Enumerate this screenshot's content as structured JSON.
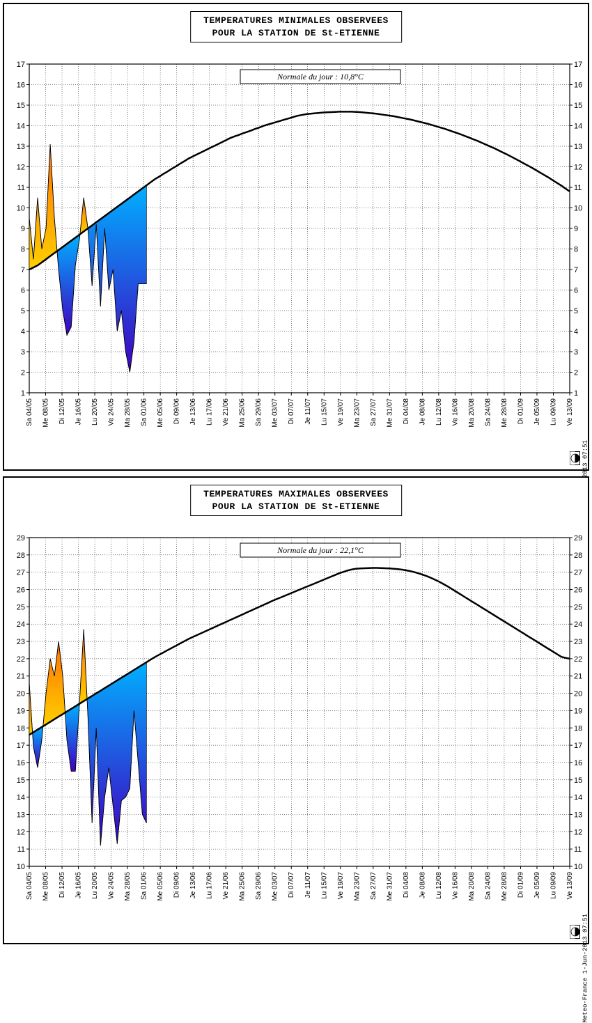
{
  "credit_text": "Meteo-France  1-Jun-2013 07:51",
  "x_labels": [
    "Sa 04/05",
    "Me 08/05",
    "Di 12/05",
    "Je 16/05",
    "Lu 20/05",
    "Ve 24/05",
    "Ma 28/05",
    "Sa 01/06",
    "Me 05/06",
    "Di 09/06",
    "Je 13/06",
    "Lu 17/06",
    "Ve 21/06",
    "Ma 25/06",
    "Sa 29/06",
    "Me 03/07",
    "Di 07/07",
    "Je 11/07",
    "Lu 15/07",
    "Ve 19/07",
    "Ma 23/07",
    "Sa 27/07",
    "Me 31/07",
    "Di 04/08",
    "Je 08/08",
    "Lu 12/08",
    "Ve 16/08",
    "Ma 20/08",
    "Sa 24/08",
    "Me 28/08",
    "Di 01/09",
    "Je 05/09",
    "Lu 09/09",
    "Ve 13/09"
  ],
  "label_fontsize": 10,
  "tick_fontsize": 11,
  "grid_color": "#000000",
  "grid_dash": "1,2",
  "normale_curve_color": "#000000",
  "normale_curve_width": 2.5,
  "warm_gradient": {
    "top": "#ff7000",
    "bottom": "#ffd000"
  },
  "cold_gradient": {
    "top": "#00b0ff",
    "bottom": "#4000c0"
  },
  "chart1": {
    "type": "area-deviation",
    "title_line1": "TEMPERATURES MINIMALES OBSERVEES",
    "title_line2": "POUR LA STATION DE St-ETIENNE",
    "normal_label": "Normale du jour : 10,8°C",
    "ylim": [
      1,
      17
    ],
    "ytick_step": 1,
    "normale_series": [
      7.0,
      7.1,
      7.2,
      7.35,
      7.5,
      7.65,
      7.8,
      7.95,
      8.1,
      8.25,
      8.4,
      8.55,
      8.7,
      8.85,
      9.0,
      9.15,
      9.3,
      9.45,
      9.6,
      9.75,
      9.9,
      10.05,
      10.2,
      10.35,
      10.5,
      10.65,
      10.8,
      10.95,
      11.1,
      11.25,
      11.4,
      11.52,
      11.65,
      11.77,
      11.9,
      12.02,
      12.15,
      12.27,
      12.4,
      12.5,
      12.6,
      12.7,
      12.8,
      12.9,
      13.0,
      13.1,
      13.2,
      13.3,
      13.4,
      13.48,
      13.55,
      13.63,
      13.7,
      13.77,
      13.85,
      13.92,
      14.0,
      14.06,
      14.12,
      14.18,
      14.24,
      14.3,
      14.36,
      14.42,
      14.48,
      14.52,
      14.56,
      14.58,
      14.6,
      14.62,
      14.64,
      14.65,
      14.66,
      14.67,
      14.68,
      14.68,
      14.68,
      14.68,
      14.67,
      14.66,
      14.64,
      14.62,
      14.6,
      14.58,
      14.55,
      14.52,
      14.49,
      14.46,
      14.42,
      14.38,
      14.34,
      14.3,
      14.25,
      14.2,
      14.15,
      14.1,
      14.04,
      13.98,
      13.92,
      13.86,
      13.79,
      13.72,
      13.65,
      13.58,
      13.5,
      13.42,
      13.34,
      13.26,
      13.17,
      13.08,
      12.99,
      12.9,
      12.8,
      12.7,
      12.6,
      12.5,
      12.39,
      12.28,
      12.17,
      12.06,
      11.95,
      11.83,
      11.71,
      11.59,
      11.47,
      11.34,
      11.21,
      11.08,
      10.94,
      10.8
    ],
    "observed_series": [
      9.5,
      7.5,
      10.5,
      8.0,
      9.0,
      13.1,
      9.5,
      7.0,
      5.0,
      3.8,
      4.2,
      7.2,
      8.5,
      10.5,
      9.0,
      6.2,
      9.2,
      5.2,
      9.0,
      6.0,
      7.0,
      4.0,
      5.0,
      3.0,
      2.0,
      3.5,
      6.3,
      6.3,
      6.3
    ]
  },
  "chart2": {
    "type": "area-deviation",
    "title_line1": "TEMPERATURES MAXIMALES OBSERVEES",
    "title_line2": "POUR LA STATION DE St-ETIENNE",
    "normal_label": "Normale du jour : 22,1°C",
    "ylim": [
      10,
      29
    ],
    "ytick_step": 1,
    "normale_series": [
      17.6,
      17.75,
      17.9,
      18.05,
      18.2,
      18.35,
      18.5,
      18.65,
      18.8,
      18.95,
      19.1,
      19.25,
      19.4,
      19.55,
      19.7,
      19.85,
      20.0,
      20.15,
      20.3,
      20.45,
      20.6,
      20.75,
      20.9,
      21.05,
      21.2,
      21.35,
      21.5,
      21.65,
      21.8,
      21.95,
      22.1,
      22.23,
      22.36,
      22.49,
      22.62,
      22.75,
      22.88,
      23.01,
      23.14,
      23.25,
      23.36,
      23.47,
      23.58,
      23.69,
      23.8,
      23.91,
      24.02,
      24.13,
      24.24,
      24.35,
      24.46,
      24.57,
      24.68,
      24.79,
      24.9,
      25.01,
      25.12,
      25.23,
      25.34,
      25.44,
      25.54,
      25.64,
      25.74,
      25.84,
      25.94,
      26.04,
      26.14,
      26.24,
      26.34,
      26.44,
      26.54,
      26.64,
      26.74,
      26.84,
      26.94,
      27.02,
      27.1,
      27.16,
      27.2,
      27.22,
      27.23,
      27.24,
      27.25,
      27.25,
      27.24,
      27.23,
      27.22,
      27.2,
      27.18,
      27.15,
      27.11,
      27.06,
      27.0,
      26.93,
      26.85,
      26.76,
      26.66,
      26.55,
      26.43,
      26.3,
      26.16,
      26.01,
      25.86,
      25.71,
      25.56,
      25.41,
      25.26,
      25.11,
      24.96,
      24.81,
      24.66,
      24.51,
      24.36,
      24.21,
      24.06,
      23.91,
      23.76,
      23.61,
      23.46,
      23.31,
      23.16,
      23.01,
      22.86,
      22.71,
      22.56,
      22.41,
      22.26,
      22.11,
      22.05,
      22.0
    ],
    "observed_series": [
      20.6,
      16.9,
      15.7,
      17.3,
      20.0,
      22.0,
      21.0,
      23.0,
      21.0,
      17.3,
      15.5,
      15.5,
      19.5,
      23.7,
      18.7,
      12.5,
      18.0,
      11.2,
      14.0,
      15.7,
      13.5,
      11.3,
      13.8,
      14.0,
      14.5,
      19.0,
      16.0,
      13.0,
      12.5
    ]
  }
}
